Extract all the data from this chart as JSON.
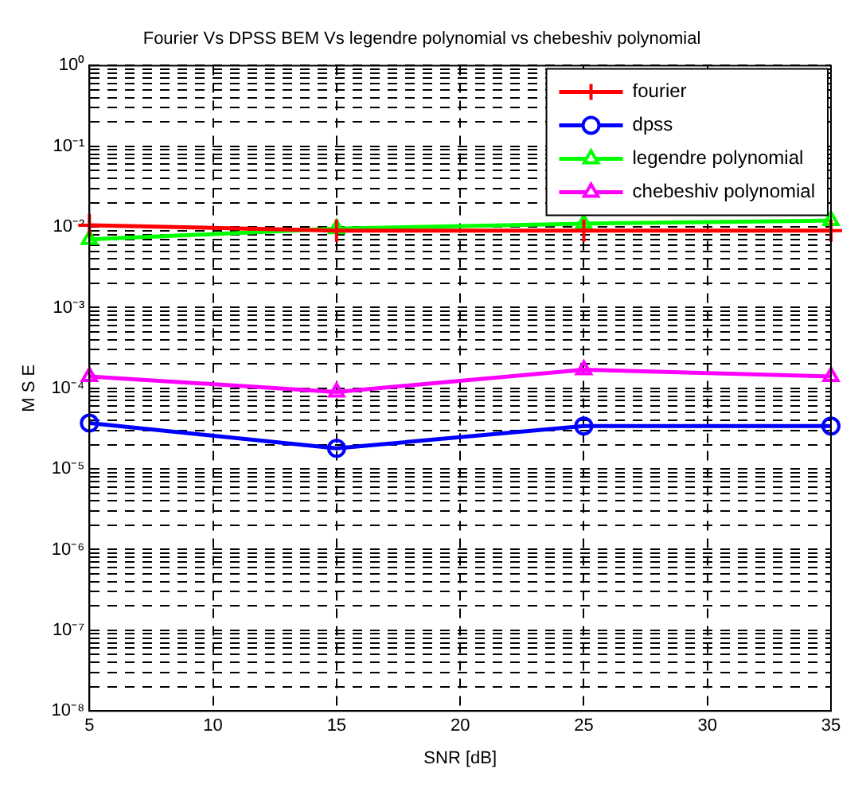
{
  "chart_data": {
    "type": "line",
    "title": "Fourier Vs DPSS BEM Vs legendre polynomial vs chebeshiv polynomial",
    "xlabel": "SNR [dB]",
    "ylabel": "M S E",
    "x": [
      5,
      15,
      25,
      35
    ],
    "series": [
      {
        "name": "fourier",
        "color": "#ff0000",
        "marker": "cross",
        "values": [
          0.0105,
          0.009,
          0.009,
          0.009
        ]
      },
      {
        "name": "dpss",
        "color": "#0000ff",
        "marker": "circle",
        "values": [
          3.7e-05,
          1.8e-05,
          3.4e-05,
          3.4e-05
        ]
      },
      {
        "name": "legendre polynomial",
        "color": "#00ff00",
        "marker": "triangle",
        "values": [
          0.007,
          0.0095,
          0.011,
          0.012
        ]
      },
      {
        "name": "chebeshiv polynomial",
        "color": "#ff00ff",
        "marker": "triangle",
        "values": [
          0.00014,
          9e-05,
          0.00017,
          0.00014
        ]
      }
    ],
    "log": "y",
    "xlim": [
      5,
      35
    ],
    "xticks": [
      5,
      10,
      15,
      20,
      25,
      30,
      35
    ],
    "ylim": [
      1e-08,
      1
    ],
    "yticks": [
      {
        "value": 1e-08,
        "label": "10⁻⁸"
      },
      {
        "value": 2e-08,
        "label": null
      },
      {
        "value": 3e-08,
        "label": null
      },
      {
        "value": 4e-08,
        "label": null
      },
      {
        "value": 5e-08,
        "label": null
      },
      {
        "value": 6e-08,
        "label": null
      },
      {
        "value": 7e-08,
        "label": null
      },
      {
        "value": 8e-08,
        "label": null
      },
      {
        "value": 9e-08,
        "label": null
      },
      {
        "value": 1e-07,
        "label": "10⁻⁷"
      },
      {
        "value": 2e-07,
        "label": null
      },
      {
        "value": 3e-07,
        "label": null
      },
      {
        "value": 4e-07,
        "label": null
      },
      {
        "value": 5e-07,
        "label": null
      },
      {
        "value": 6e-07,
        "label": null
      },
      {
        "value": 7e-07,
        "label": null
      },
      {
        "value": 8e-07,
        "label": null
      },
      {
        "value": 9e-07,
        "label": null
      },
      {
        "value": 1e-06,
        "label": "10⁻⁶"
      },
      {
        "value": 2e-06,
        "label": null
      },
      {
        "value": 3e-06,
        "label": null
      },
      {
        "value": 4e-06,
        "label": null
      },
      {
        "value": 5e-06,
        "label": null
      },
      {
        "value": 6e-06,
        "label": null
      },
      {
        "value": 7e-06,
        "label": null
      },
      {
        "value": 8e-06,
        "label": null
      },
      {
        "value": 9e-06,
        "label": null
      },
      {
        "value": 1e-05,
        "label": "10⁻⁵"
      },
      {
        "value": 2e-05,
        "label": null
      },
      {
        "value": 3e-05,
        "label": null
      },
      {
        "value": 4e-05,
        "label": null
      },
      {
        "value": 5e-05,
        "label": null
      },
      {
        "value": 6e-05,
        "label": null
      },
      {
        "value": 7e-05,
        "label": null
      },
      {
        "value": 8e-05,
        "label": null
      },
      {
        "value": 9e-05,
        "label": null
      },
      {
        "value": 0.0001,
        "label": "10⁻⁴"
      },
      {
        "value": 0.0002,
        "label": null
      },
      {
        "value": 0.0003,
        "label": null
      },
      {
        "value": 0.0004,
        "label": null
      },
      {
        "value": 0.0005,
        "label": null
      },
      {
        "value": 0.0006,
        "label": null
      },
      {
        "value": 0.0007,
        "label": null
      },
      {
        "value": 0.0008,
        "label": null
      },
      {
        "value": 0.0009,
        "label": null
      },
      {
        "value": 0.001,
        "label": "10⁻³"
      },
      {
        "value": 0.002,
        "label": null
      },
      {
        "value": 0.003,
        "label": null
      },
      {
        "value": 0.004,
        "label": null
      },
      {
        "value": 0.005,
        "label": null
      },
      {
        "value": 0.006,
        "label": null
      },
      {
        "value": 0.007,
        "label": null
      },
      {
        "value": 0.008,
        "label": null
      },
      {
        "value": 0.009,
        "label": null
      },
      {
        "value": 0.01,
        "label": "10⁻²"
      },
      {
        "value": 0.02,
        "label": null
      },
      {
        "value": 0.03,
        "label": null
      },
      {
        "value": 0.04,
        "label": null
      },
      {
        "value": 0.05,
        "label": null
      },
      {
        "value": 0.06,
        "label": null
      },
      {
        "value": 0.07,
        "label": null
      },
      {
        "value": 0.08,
        "label": null
      },
      {
        "value": 0.09,
        "label": null
      },
      {
        "value": 0.1,
        "label": "10⁻¹"
      },
      {
        "value": 0.2,
        "label": null
      },
      {
        "value": 0.3,
        "label": null
      },
      {
        "value": 0.4,
        "label": null
      },
      {
        "value": 0.5,
        "label": null
      },
      {
        "value": 0.6,
        "label": null
      },
      {
        "value": 0.7,
        "label": null
      },
      {
        "value": 0.8,
        "label": null
      },
      {
        "value": 0.9,
        "label": null
      },
      {
        "value": 1,
        "label": "10⁰"
      }
    ],
    "grid": true,
    "legend": "top right",
    "line_style": "solid"
  }
}
